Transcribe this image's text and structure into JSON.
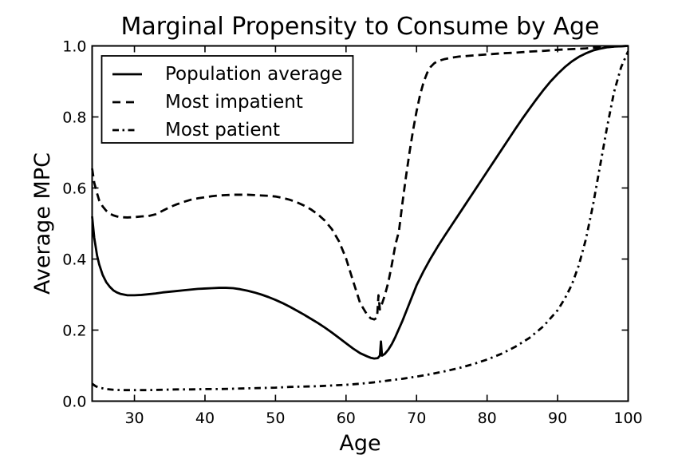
{
  "chart_data": {
    "type": "line",
    "title": "Marginal Propensity to Consume by Age",
    "xlabel": "Age",
    "ylabel": "Average MPC",
    "xlim": [
      24,
      100
    ],
    "ylim": [
      0.0,
      1.0
    ],
    "x_ticks": [
      30,
      40,
      50,
      60,
      70,
      80,
      90,
      100
    ],
    "x_tick_labels": [
      "30",
      "40",
      "50",
      "60",
      "70",
      "80",
      "90",
      "100"
    ],
    "y_ticks": [
      0.0,
      0.2,
      0.4,
      0.6,
      0.8,
      1.0
    ],
    "y_tick_labels": [
      "0.0",
      "0.2",
      "0.4",
      "0.6",
      "0.8",
      "1.0"
    ],
    "grid": false,
    "legend_position": "upper left",
    "colors": {
      "background": "#ffffff",
      "line": "#000000",
      "frame": "#000000",
      "legend_background": "#ffffff"
    },
    "series": [
      {
        "name": "Population average",
        "style": "solid",
        "points": [
          [
            24,
            0.52
          ],
          [
            24.3,
            0.46
          ],
          [
            24.7,
            0.41
          ],
          [
            25,
            0.385
          ],
          [
            25.5,
            0.355
          ],
          [
            26,
            0.335
          ],
          [
            26.5,
            0.322
          ],
          [
            27,
            0.312
          ],
          [
            27.5,
            0.306
          ],
          [
            28,
            0.302
          ],
          [
            29,
            0.298
          ],
          [
            30,
            0.298
          ],
          [
            31,
            0.299
          ],
          [
            32,
            0.301
          ],
          [
            33,
            0.303
          ],
          [
            34,
            0.306
          ],
          [
            35,
            0.308
          ],
          [
            36,
            0.31
          ],
          [
            37,
            0.312
          ],
          [
            38,
            0.314
          ],
          [
            39,
            0.316
          ],
          [
            40,
            0.317
          ],
          [
            41,
            0.318
          ],
          [
            42,
            0.319
          ],
          [
            43,
            0.319
          ],
          [
            44,
            0.318
          ],
          [
            45,
            0.315
          ],
          [
            46,
            0.311
          ],
          [
            47,
            0.306
          ],
          [
            48,
            0.3
          ],
          [
            49,
            0.293
          ],
          [
            50,
            0.285
          ],
          [
            51,
            0.276
          ],
          [
            52,
            0.266
          ],
          [
            53,
            0.255
          ],
          [
            54,
            0.244
          ],
          [
            55,
            0.232
          ],
          [
            56,
            0.22
          ],
          [
            57,
            0.207
          ],
          [
            58,
            0.193
          ],
          [
            59,
            0.178
          ],
          [
            60,
            0.163
          ],
          [
            61,
            0.148
          ],
          [
            62,
            0.135
          ],
          [
            63,
            0.126
          ],
          [
            63.5,
            0.122
          ],
          [
            64,
            0.12
          ],
          [
            64.5,
            0.121
          ],
          [
            64.8,
            0.128
          ],
          [
            64.95,
            0.168
          ],
          [
            65.1,
            0.128
          ],
          [
            65.5,
            0.133
          ],
          [
            66,
            0.145
          ],
          [
            66.5,
            0.161
          ],
          [
            67,
            0.181
          ],
          [
            68,
            0.226
          ],
          [
            69,
            0.276
          ],
          [
            70,
            0.326
          ],
          [
            71,
            0.366
          ],
          [
            72,
            0.402
          ],
          [
            73,
            0.435
          ],
          [
            74,
            0.466
          ],
          [
            75,
            0.496
          ],
          [
            76,
            0.526
          ],
          [
            77,
            0.556
          ],
          [
            78,
            0.586
          ],
          [
            79,
            0.616
          ],
          [
            80,
            0.646
          ],
          [
            81,
            0.676
          ],
          [
            82,
            0.706
          ],
          [
            83,
            0.736
          ],
          [
            84,
            0.766
          ],
          [
            85,
            0.795
          ],
          [
            86,
            0.823
          ],
          [
            87,
            0.85
          ],
          [
            88,
            0.876
          ],
          [
            89,
            0.9
          ],
          [
            90,
            0.921
          ],
          [
            91,
            0.94
          ],
          [
            92,
            0.956
          ],
          [
            93,
            0.969
          ],
          [
            94,
            0.979
          ],
          [
            95,
            0.987
          ],
          [
            96,
            0.992
          ],
          [
            97,
            0.996
          ],
          [
            98,
            0.998
          ],
          [
            99,
            0.999
          ],
          [
            100,
            1.0
          ]
        ]
      },
      {
        "name": "Most impatient",
        "style": "dashed",
        "points": [
          [
            24,
            0.655
          ],
          [
            24.3,
            0.615
          ],
          [
            24.7,
            0.585
          ],
          [
            25,
            0.565
          ],
          [
            25.5,
            0.548
          ],
          [
            26,
            0.536
          ],
          [
            26.5,
            0.528
          ],
          [
            27,
            0.523
          ],
          [
            27.5,
            0.52
          ],
          [
            28,
            0.518
          ],
          [
            29,
            0.517
          ],
          [
            30,
            0.518
          ],
          [
            31,
            0.52
          ],
          [
            32,
            0.521
          ],
          [
            33,
            0.526
          ],
          [
            34,
            0.536
          ],
          [
            35,
            0.546
          ],
          [
            36,
            0.554
          ],
          [
            37,
            0.561
          ],
          [
            38,
            0.567
          ],
          [
            39,
            0.571
          ],
          [
            40,
            0.574
          ],
          [
            41,
            0.577
          ],
          [
            42,
            0.579
          ],
          [
            43,
            0.58
          ],
          [
            44,
            0.581
          ],
          [
            45,
            0.581
          ],
          [
            46,
            0.581
          ],
          [
            47,
            0.58
          ],
          [
            48,
            0.579
          ],
          [
            49,
            0.578
          ],
          [
            50,
            0.576
          ],
          [
            51,
            0.572
          ],
          [
            52,
            0.567
          ],
          [
            53,
            0.56
          ],
          [
            54,
            0.551
          ],
          [
            55,
            0.54
          ],
          [
            56,
            0.526
          ],
          [
            57,
            0.508
          ],
          [
            58,
            0.484
          ],
          [
            59,
            0.45
          ],
          [
            60,
            0.402
          ],
          [
            61,
            0.338
          ],
          [
            62,
            0.276
          ],
          [
            63,
            0.243
          ],
          [
            63.5,
            0.233
          ],
          [
            64,
            0.23
          ],
          [
            64.4,
            0.235
          ],
          [
            64.6,
            0.298
          ],
          [
            64.8,
            0.258
          ],
          [
            65,
            0.268
          ],
          [
            65.5,
            0.298
          ],
          [
            66,
            0.335
          ],
          [
            66.5,
            0.385
          ],
          [
            67,
            0.44
          ],
          [
            67.5,
            0.478
          ],
          [
            68,
            0.558
          ],
          [
            68.5,
            0.632
          ],
          [
            69,
            0.7
          ],
          [
            69.5,
            0.762
          ],
          [
            70,
            0.816
          ],
          [
            70.5,
            0.862
          ],
          [
            71,
            0.898
          ],
          [
            71.5,
            0.924
          ],
          [
            72,
            0.941
          ],
          [
            72.5,
            0.951
          ],
          [
            73,
            0.957
          ],
          [
            74,
            0.963
          ],
          [
            75,
            0.967
          ],
          [
            76,
            0.97
          ],
          [
            78,
            0.973
          ],
          [
            80,
            0.976
          ],
          [
            82,
            0.979
          ],
          [
            84,
            0.981
          ],
          [
            86,
            0.984
          ],
          [
            88,
            0.986
          ],
          [
            90,
            0.989
          ],
          [
            92,
            0.991
          ],
          [
            94,
            0.993
          ],
          [
            96,
            0.996
          ],
          [
            98,
            0.998
          ],
          [
            100,
            1.0
          ]
        ]
      },
      {
        "name": "Most patient",
        "style": "dashdot",
        "points": [
          [
            24,
            0.049
          ],
          [
            24.5,
            0.042
          ],
          [
            25,
            0.038
          ],
          [
            26,
            0.034
          ],
          [
            27,
            0.032
          ],
          [
            28,
            0.031
          ],
          [
            30,
            0.031
          ],
          [
            32,
            0.031
          ],
          [
            34,
            0.032
          ],
          [
            36,
            0.033
          ],
          [
            38,
            0.033
          ],
          [
            40,
            0.034
          ],
          [
            42,
            0.034
          ],
          [
            44,
            0.035
          ],
          [
            46,
            0.036
          ],
          [
            48,
            0.037
          ],
          [
            50,
            0.038
          ],
          [
            52,
            0.04
          ],
          [
            54,
            0.041
          ],
          [
            56,
            0.042
          ],
          [
            58,
            0.044
          ],
          [
            60,
            0.046
          ],
          [
            62,
            0.049
          ],
          [
            64,
            0.053
          ],
          [
            66,
            0.058
          ],
          [
            68,
            0.063
          ],
          [
            70,
            0.069
          ],
          [
            72,
            0.076
          ],
          [
            74,
            0.084
          ],
          [
            76,
            0.093
          ],
          [
            78,
            0.104
          ],
          [
            80,
            0.117
          ],
          [
            82,
            0.133
          ],
          [
            84,
            0.153
          ],
          [
            86,
            0.178
          ],
          [
            88,
            0.211
          ],
          [
            90,
            0.256
          ],
          [
            91,
            0.288
          ],
          [
            92,
            0.327
          ],
          [
            93,
            0.382
          ],
          [
            94,
            0.455
          ],
          [
            95,
            0.55
          ],
          [
            96,
            0.66
          ],
          [
            97,
            0.77
          ],
          [
            98,
            0.87
          ],
          [
            99,
            0.94
          ],
          [
            100,
            0.985
          ]
        ]
      }
    ]
  }
}
